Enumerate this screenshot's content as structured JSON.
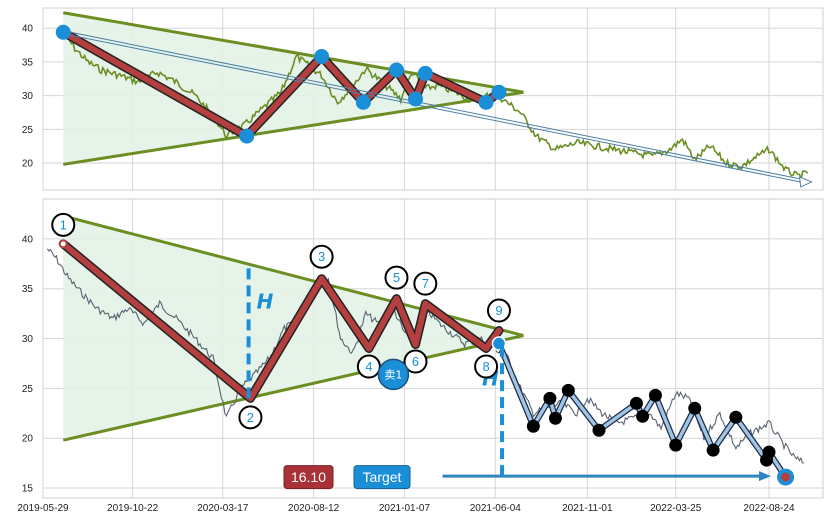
{
  "chart_data": [
    {
      "type": "line",
      "panel": "overview",
      "title": "",
      "ylim": [
        16,
        43
      ],
      "yticks": [
        20,
        25,
        30,
        35,
        40
      ],
      "x_range": [
        "2019-05-29",
        "2022-11-20"
      ],
      "grid": true,
      "series": [
        {
          "role": "price",
          "color": "#6b8e23",
          "x": [
            "2019-07-01",
            "2019-07-20",
            "2019-08-10",
            "2019-09-01",
            "2019-10-01",
            "2019-11-01",
            "2019-12-01",
            "2020-01-01",
            "2020-02-01",
            "2020-03-01",
            "2020-03-23",
            "2020-04-20",
            "2020-05-20",
            "2020-06-20",
            "2020-07-15",
            "2020-08-25",
            "2020-09-20",
            "2020-10-15",
            "2020-11-05",
            "2020-12-01",
            "2021-01-01",
            "2021-01-20",
            "2021-02-10",
            "2021-03-01",
            "2021-04-01",
            "2021-05-01",
            "2021-06-01",
            "2021-06-20",
            "2021-07-15",
            "2021-08-10",
            "2021-09-10",
            "2021-10-15",
            "2021-11-15",
            "2021-12-15",
            "2022-01-15",
            "2022-02-15",
            "2022-03-15",
            "2022-04-05",
            "2022-04-25",
            "2022-05-20",
            "2022-06-15",
            "2022-07-10",
            "2022-08-05",
            "2022-08-24",
            "2022-09-20",
            "2022-10-10",
            "2022-10-26"
          ],
          "y": [
            39.4,
            37.0,
            35.0,
            33.8,
            33.0,
            32.0,
            33.5,
            32.0,
            30.0,
            27.0,
            24.0,
            25.5,
            28.0,
            30.5,
            35.8,
            33.0,
            29.0,
            31.5,
            34.0,
            32.0,
            29.5,
            33.5,
            31.0,
            31.5,
            30.5,
            29.0,
            30.5,
            29.2,
            27.5,
            24.0,
            22.0,
            23.0,
            22.5,
            22.0,
            21.5,
            21.0,
            22.0,
            23.5,
            20.5,
            22.5,
            20.0,
            19.5,
            21.0,
            22.0,
            19.0,
            18.0,
            18.5
          ]
        }
      ],
      "triangle": {
        "upper": [
          [
            "2019-07-01",
            42.3
          ],
          [
            "2021-07-20",
            30.5
          ]
        ],
        "lower": [
          [
            "2019-07-01",
            19.8
          ],
          [
            "2021-07-20",
            30.5
          ]
        ]
      },
      "trend_arrow": [
        [
          "2019-07-01",
          39.4
        ],
        [
          "2022-10-26",
          17.2
        ]
      ],
      "pattern_points": [
        [
          "2019-07-01",
          39.4
        ],
        [
          "2020-04-25",
          24.0
        ],
        [
          "2020-08-25",
          35.8
        ],
        [
          "2020-11-01",
          29.0
        ],
        [
          "2020-12-25",
          33.8
        ],
        [
          "2021-01-25",
          29.5
        ],
        [
          "2021-02-10",
          33.3
        ],
        [
          "2021-05-20",
          29.0
        ],
        [
          "2021-06-10",
          30.5
        ]
      ]
    },
    {
      "type": "line",
      "panel": "detail",
      "title": "",
      "ylim": [
        14,
        44
      ],
      "yticks": [
        15,
        20,
        25,
        30,
        35,
        40
      ],
      "x_range": [
        "2019-05-29",
        "2022-11-20"
      ],
      "xticks": [
        "2019-05-29",
        "2019-10-22",
        "2020-03-17",
        "2020-08-12",
        "2021-01-07",
        "2021-06-04",
        "2021-11-01",
        "2022-03-25",
        "2022-08-24"
      ],
      "grid": true,
      "series": [
        {
          "role": "price",
          "color": "#5a6272",
          "x": [
            "2019-06-05",
            "2019-06-20",
            "2019-07-10",
            "2019-08-01",
            "2019-08-25",
            "2019-09-20",
            "2019-10-15",
            "2019-11-10",
            "2019-12-05",
            "2020-01-01",
            "2020-02-01",
            "2020-03-01",
            "2020-03-23",
            "2020-04-15",
            "2020-05-10",
            "2020-06-01",
            "2020-06-25",
            "2020-07-20",
            "2020-08-12",
            "2020-09-05",
            "2020-09-25",
            "2020-10-15",
            "2020-11-05",
            "2020-11-25",
            "2020-12-20",
            "2021-01-07",
            "2021-01-25",
            "2021-02-10",
            "2021-03-05",
            "2021-03-25",
            "2021-04-15",
            "2021-05-10",
            "2021-06-04",
            "2021-06-25",
            "2021-07-15",
            "2021-08-05",
            "2021-08-25",
            "2021-09-20",
            "2021-10-15",
            "2021-11-01",
            "2021-11-25",
            "2021-12-20",
            "2022-01-15",
            "2022-02-10",
            "2022-03-01",
            "2022-03-25",
            "2022-04-15",
            "2022-05-10",
            "2022-06-05",
            "2022-07-01",
            "2022-07-25",
            "2022-08-24",
            "2022-09-15",
            "2022-10-05",
            "2022-10-20"
          ],
          "y": [
            39.0,
            38.0,
            36.0,
            34.5,
            33.0,
            32.0,
            33.0,
            31.5,
            33.5,
            32.0,
            30.0,
            28.0,
            22.0,
            25.0,
            26.5,
            28.0,
            31.0,
            32.0,
            35.5,
            36.0,
            30.0,
            28.5,
            32.5,
            31.5,
            33.0,
            30.5,
            30.5,
            33.0,
            31.5,
            30.5,
            29.5,
            30.0,
            29.0,
            28.0,
            25.0,
            22.5,
            23.0,
            23.5,
            22.5,
            24.0,
            22.5,
            21.5,
            22.0,
            22.5,
            21.0,
            24.5,
            24.0,
            20.0,
            22.5,
            19.0,
            20.5,
            21.5,
            19.5,
            18.0,
            17.5
          ]
        }
      ],
      "triangle": {
        "upper": [
          [
            "2019-07-01",
            42.3
          ],
          [
            "2021-07-20",
            30.3
          ]
        ],
        "lower": [
          [
            "2019-07-01",
            19.8
          ],
          [
            "2021-07-20",
            30.3
          ]
        ]
      },
      "pattern_points": [
        {
          "label": "1",
          "x": "2019-07-01",
          "y": 39.5
        },
        {
          "label": "2",
          "x": "2020-05-01",
          "y": 24.0
        },
        {
          "label": "3",
          "x": "2020-08-25",
          "y": 36.0
        },
        {
          "label": "4",
          "x": "2020-11-10",
          "y": 29.0
        },
        {
          "label": "5",
          "x": "2020-12-25",
          "y": 34.0
        },
        {
          "label": "6",
          "x": "2021-01-25",
          "y": 29.4
        },
        {
          "label": "7",
          "x": "2021-02-10",
          "y": 33.5
        },
        {
          "label": "8",
          "x": "2021-05-20",
          "y": 29.0
        },
        {
          "label": "9",
          "x": "2021-06-10",
          "y": 30.8
        }
      ],
      "breakdown_path": [
        [
          "2021-06-10",
          29.5
        ],
        [
          "2021-08-05",
          21.2
        ],
        [
          "2021-09-01",
          24.0
        ],
        [
          "2021-09-10",
          22.0
        ],
        [
          "2021-10-01",
          24.8
        ],
        [
          "2021-11-20",
          20.8
        ],
        [
          "2022-01-20",
          23.5
        ],
        [
          "2022-01-30",
          22.2
        ],
        [
          "2022-02-20",
          24.3
        ],
        [
          "2022-03-25",
          19.3
        ],
        [
          "2022-04-25",
          23.0
        ],
        [
          "2022-05-25",
          18.8
        ],
        [
          "2022-07-01",
          22.1
        ],
        [
          "2022-08-20",
          17.8
        ],
        [
          "2022-08-24",
          18.6
        ],
        [
          "2022-09-20",
          16.1
        ]
      ],
      "target_value": 16.1,
      "target_label": "16.10",
      "target_text": "Target",
      "sell_label": "卖1",
      "sell_point": [
        "2020-12-20",
        26.4
      ],
      "height_label": "H",
      "height_markers": [
        {
          "x": "2020-04-28",
          "from": 24.0,
          "to": 37.5
        },
        {
          "x": "2021-06-15",
          "from": 16.2,
          "to": 29.5
        }
      ],
      "target_arrow": [
        [
          "2021-03-10",
          16.2
        ],
        [
          "2022-08-24",
          16.2
        ]
      ]
    }
  ],
  "colors": {
    "triangle_fill": "#e3f2e6",
    "triangle_line": "#6b8e23",
    "pattern_line": "#b3403f",
    "marker_blue": "#1a8fd8",
    "breakdown_line": "#9ec4e6",
    "label_box_red": "#a83238",
    "label_box_blue": "#1a8fd8",
    "height_dash": "#1a8fd8"
  }
}
